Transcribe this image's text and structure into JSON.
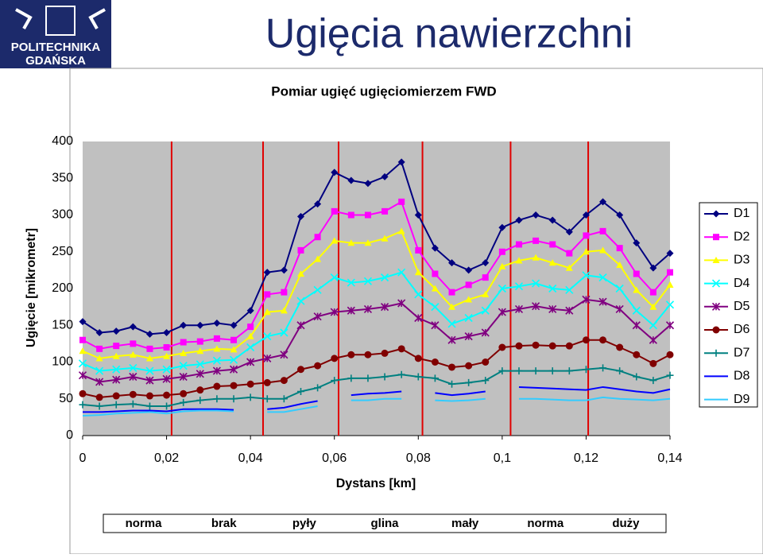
{
  "header": {
    "title": "Ugięcia nawierzchni",
    "logo": [
      "POLITECHNIKA",
      "GDAŃSKA"
    ]
  },
  "chart_data": {
    "type": "line",
    "title": "Pomiar ugięć ugięciomierzem FWD",
    "x_label": "Dystans [km]",
    "y_label": "Ugięcie [mikrometr]",
    "xlim": [
      0,
      0.14
    ],
    "ylim": [
      0,
      400
    ],
    "xticks": [
      {
        "value": 0,
        "label": "0"
      },
      {
        "value": 0.02,
        "label": "0,02"
      },
      {
        "value": 0.04,
        "label": "0,04"
      },
      {
        "value": 0.06,
        "label": "0,06"
      },
      {
        "value": 0.08,
        "label": "0,08"
      },
      {
        "value": 0.1,
        "label": "0,1"
      },
      {
        "value": 0.12,
        "label": "0,12"
      },
      {
        "value": 0.14,
        "label": "0,14"
      }
    ],
    "yticks": [
      0,
      50,
      100,
      150,
      200,
      250,
      300,
      350,
      400
    ],
    "legend": "right",
    "boundaries": [
      0.0212,
      0.043,
      0.061,
      0.081,
      0.102,
      0.1205
    ],
    "boundary_color": "#e00000",
    "segments": [
      "norma",
      "brak",
      "pyły",
      "glina",
      "mały",
      "norma",
      "duży"
    ],
    "x": [
      0,
      0.004,
      0.008,
      0.012,
      0.016,
      0.02,
      0.024,
      0.028,
      0.032,
      0.036,
      0.04,
      0.044,
      0.048,
      0.052,
      0.056,
      0.06,
      0.064,
      0.068,
      0.072,
      0.076,
      0.08,
      0.084,
      0.088,
      0.092,
      0.096,
      0.1,
      0.104,
      0.108,
      0.112,
      0.116,
      0.12,
      0.124,
      0.128,
      0.132,
      0.136,
      0.14
    ],
    "series": [
      {
        "name": "D1",
        "color": "#000080",
        "marker": "diamond",
        "values": [
          155,
          140,
          142,
          148,
          138,
          140,
          150,
          150,
          153,
          150,
          170,
          222,
          225,
          298,
          315,
          358,
          347,
          343,
          352,
          372,
          300,
          255,
          235,
          225,
          235,
          283,
          293,
          300,
          293,
          277,
          300,
          318,
          300,
          262,
          228,
          248
        ]
      },
      {
        "name": "D2",
        "color": "#ff00ff",
        "marker": "square",
        "values": [
          130,
          118,
          122,
          125,
          118,
          120,
          127,
          128,
          132,
          130,
          148,
          192,
          195,
          252,
          270,
          305,
          300,
          300,
          305,
          318,
          252,
          220,
          195,
          205,
          215,
          250,
          260,
          265,
          260,
          248,
          272,
          278,
          255,
          220,
          195,
          222
        ]
      },
      {
        "name": "D3",
        "color": "#ffff00",
        "marker": "triangle",
        "values": [
          115,
          105,
          108,
          110,
          105,
          108,
          112,
          115,
          118,
          117,
          135,
          168,
          170,
          220,
          240,
          265,
          262,
          262,
          268,
          278,
          222,
          200,
          175,
          185,
          192,
          230,
          238,
          242,
          235,
          228,
          250,
          252,
          232,
          198,
          175,
          205
        ]
      },
      {
        "name": "D4",
        "color": "#00ffff",
        "marker": "x",
        "values": [
          98,
          88,
          90,
          92,
          88,
          90,
          95,
          97,
          102,
          103,
          120,
          135,
          140,
          183,
          198,
          215,
          208,
          210,
          215,
          222,
          192,
          175,
          152,
          160,
          170,
          200,
          203,
          207,
          200,
          198,
          218,
          215,
          200,
          170,
          150,
          178
        ]
      },
      {
        "name": "D5",
        "color": "#800080",
        "marker": "star",
        "values": [
          82,
          73,
          76,
          80,
          75,
          77,
          80,
          84,
          88,
          90,
          100,
          105,
          110,
          150,
          162,
          168,
          170,
          172,
          175,
          180,
          160,
          150,
          130,
          135,
          140,
          168,
          172,
          176,
          172,
          170,
          185,
          182,
          172,
          150,
          130,
          150
        ]
      },
      {
        "name": "D6",
        "color": "#800000",
        "marker": "circle",
        "values": [
          57,
          52,
          54,
          56,
          54,
          55,
          57,
          62,
          67,
          68,
          70,
          72,
          75,
          90,
          95,
          105,
          110,
          110,
          112,
          118,
          105,
          100,
          93,
          95,
          100,
          120,
          122,
          123,
          122,
          122,
          130,
          130,
          120,
          110,
          98,
          110
        ]
      },
      {
        "name": "D7",
        "color": "#008080",
        "marker": "plus",
        "values": [
          42,
          40,
          42,
          43,
          40,
          40,
          45,
          48,
          50,
          50,
          52,
          50,
          50,
          60,
          65,
          75,
          78,
          78,
          80,
          83,
          80,
          78,
          70,
          72,
          75,
          88,
          88,
          88,
          88,
          88,
          90,
          92,
          88,
          80,
          75,
          82
        ]
      },
      {
        "name": "D8",
        "color": "#0000ff",
        "marker": "none",
        "values": [
          32,
          32,
          33,
          34,
          34,
          33,
          36,
          36,
          36,
          35,
          null,
          36,
          38,
          43,
          47,
          null,
          55,
          57,
          58,
          60,
          null,
          58,
          55,
          57,
          60,
          null,
          66,
          65,
          64,
          63,
          62,
          66,
          63,
          60,
          58,
          63
        ]
      },
      {
        "name": "D9",
        "color": "#33ccff",
        "marker": "none",
        "values": [
          27,
          28,
          30,
          31,
          32,
          30,
          33,
          34,
          34,
          33,
          null,
          32,
          32,
          36,
          40,
          null,
          48,
          48,
          50,
          50,
          null,
          48,
          47,
          48,
          50,
          null,
          50,
          50,
          49,
          48,
          48,
          52,
          50,
          49,
          48,
          50
        ]
      }
    ]
  }
}
